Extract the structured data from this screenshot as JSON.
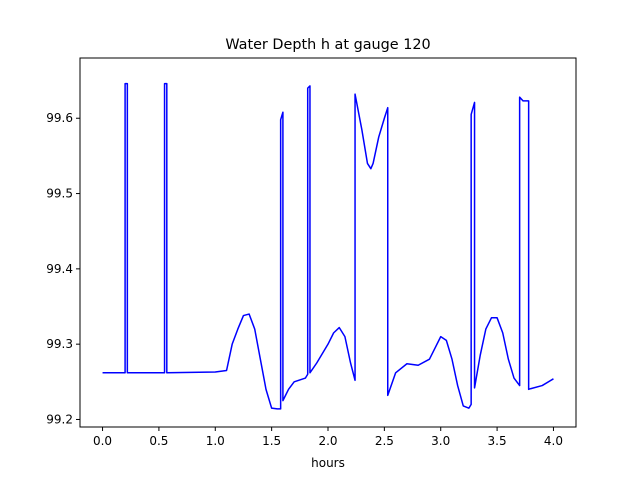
{
  "chart_data": {
    "type": "line",
    "title": "Water Depth h at gauge 120",
    "xlabel": "hours",
    "ylabel": "",
    "xlim": [
      -0.2,
      4.2
    ],
    "ylim": [
      99.19,
      99.68
    ],
    "xticks": [
      0.0,
      0.5,
      1.0,
      1.5,
      2.0,
      2.5,
      3.0,
      3.5,
      4.0
    ],
    "xtick_labels": [
      "0.0",
      "0.5",
      "1.0",
      "1.5",
      "2.0",
      "2.5",
      "3.0",
      "3.5",
      "4.0"
    ],
    "yticks": [
      99.2,
      99.3,
      99.4,
      99.5,
      99.6
    ],
    "ytick_labels": [
      "99.2",
      "99.3",
      "99.4",
      "99.5",
      "99.6"
    ],
    "grid": false,
    "series": [
      {
        "color": "#0000ff",
        "x": [
          0.0,
          0.2,
          0.2,
          0.22,
          0.22,
          0.55,
          0.55,
          0.57,
          0.57,
          1.0,
          1.1,
          1.15,
          1.2,
          1.25,
          1.3,
          1.35,
          1.4,
          1.45,
          1.5,
          1.55,
          1.58,
          1.58,
          1.6,
          1.6,
          1.65,
          1.7,
          1.8,
          1.82,
          1.82,
          1.84,
          1.84,
          1.9,
          2.0,
          2.05,
          2.1,
          2.15,
          2.2,
          2.24,
          2.24,
          2.3,
          2.35,
          2.38,
          2.4,
          2.45,
          2.5,
          2.53,
          2.53,
          2.6,
          2.7,
          2.8,
          2.9,
          2.95,
          3.0,
          3.05,
          3.1,
          3.15,
          3.2,
          3.25,
          3.27,
          3.27,
          3.3,
          3.3,
          3.35,
          3.4,
          3.45,
          3.5,
          3.55,
          3.6,
          3.65,
          3.7,
          3.7,
          3.73,
          3.73,
          3.78,
          3.78,
          3.8,
          3.9,
          4.0
        ],
        "y": [
          99.262,
          99.262,
          99.646,
          99.646,
          99.262,
          99.262,
          99.646,
          99.646,
          99.262,
          99.263,
          99.265,
          99.3,
          99.32,
          99.338,
          99.34,
          99.32,
          99.28,
          99.24,
          99.215,
          99.214,
          99.214,
          99.598,
          99.608,
          99.225,
          99.24,
          99.25,
          99.255,
          99.26,
          99.64,
          99.643,
          99.262,
          99.275,
          99.3,
          99.315,
          99.322,
          99.31,
          99.275,
          99.252,
          99.632,
          99.585,
          99.54,
          99.533,
          99.54,
          99.575,
          99.6,
          99.614,
          99.232,
          99.262,
          99.274,
          99.272,
          99.28,
          99.295,
          99.31,
          99.305,
          99.28,
          99.245,
          99.218,
          99.215,
          99.22,
          99.605,
          99.621,
          99.242,
          99.285,
          99.32,
          99.335,
          99.335,
          99.315,
          99.28,
          99.255,
          99.245,
          99.628,
          99.623,
          99.623,
          99.623,
          99.24,
          99.241,
          99.245,
          99.254
        ]
      }
    ]
  }
}
